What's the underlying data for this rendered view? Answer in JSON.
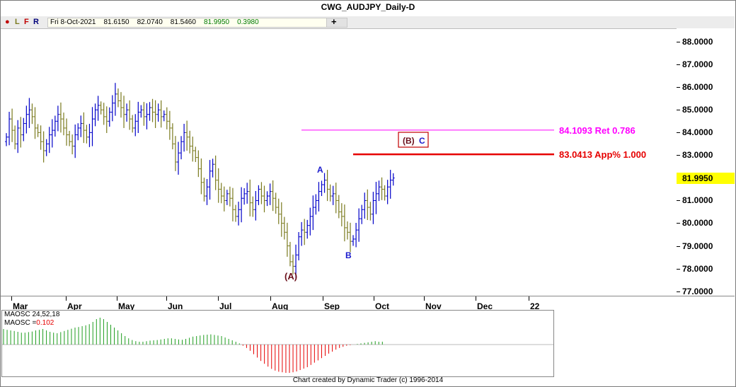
{
  "window": {
    "title": "CWG_AUDJPY_Daily-D"
  },
  "toolbar": {
    "buttons": [
      "L",
      "F",
      "R"
    ],
    "dot_color": "#c00000"
  },
  "quote": {
    "date": "Fri 8-Oct-2021",
    "open": "81.6150",
    "high": "82.0740",
    "low": "81.5460",
    "close": "81.9950",
    "change": "0.3980"
  },
  "chart_data": {
    "type": "ohlc",
    "symbol": "CWG_AUDJPY",
    "timeframe": "Daily",
    "price_ticks": [
      "88.0000",
      "87.0000",
      "86.0000",
      "85.0000",
      "84.0000",
      "83.0000",
      "81.0000",
      "80.0000",
      "79.0000",
      "78.0000",
      "77.0000"
    ],
    "ylim": [
      76.8,
      88.6
    ],
    "last_price": "81.9950",
    "last_price_bg": "#ffff00",
    "month_labels": [
      "Mar",
      "Apr",
      "May",
      "Jun",
      "Jul",
      "Aug",
      "Sep",
      "Oct",
      "Nov",
      "Dec",
      "22"
    ],
    "up_color": "#0000c8",
    "down_color": "#7a7a1e",
    "closes": [
      83.8,
      84.6,
      84.1,
      83.5,
      84.2,
      83.9,
      84.4,
      84.8,
      85.0,
      84.7,
      84.2,
      84.0,
      83.6,
      83.2,
      83.5,
      83.9,
      84.1,
      84.5,
      84.8,
      84.6,
      84.2,
      83.9,
      83.6,
      83.4,
      83.9,
      84.2,
      84.4,
      84.1,
      83.8,
      84.0,
      84.6,
      85.0,
      85.2,
      85.0,
      84.7,
      84.5,
      84.9,
      85.3,
      85.7,
      85.4,
      85.1,
      84.8,
      85.0,
      84.6,
      84.2,
      84.5,
      84.9,
      85.0,
      84.7,
      84.8,
      85.1,
      84.9,
      84.8,
      85.0,
      84.7,
      84.8,
      84.5,
      84.2,
      83.5,
      82.7,
      83.1,
      83.6,
      84.0,
      83.8,
      83.4,
      83.2,
      82.9,
      82.4,
      81.8,
      81.2,
      81.6,
      82.3,
      82.6,
      81.9,
      81.5,
      81.2,
      81.0,
      81.3,
      81.1,
      80.6,
      80.3,
      80.6,
      81.1,
      81.3,
      81.4,
      80.9,
      80.6,
      81.0,
      81.5,
      81.2,
      81.0,
      81.2,
      81.4,
      81.1,
      80.7,
      80.4,
      80.0,
      79.6,
      79.0,
      78.3,
      78.1,
      78.6,
      79.4,
      79.7,
      79.6,
      79.9,
      80.3,
      80.7,
      81.0,
      81.4,
      81.7,
      81.9,
      81.5,
      81.2,
      81.3,
      81.0,
      80.5,
      80.3,
      79.8,
      79.6,
      79.2,
      79.3,
      79.7,
      80.2,
      80.6,
      81.0,
      80.7,
      80.4,
      81.0,
      81.3,
      81.6,
      81.5,
      81.2,
      81.6,
      81.9,
      81.995
    ],
    "annotations": {
      "wave_A_paren": "(A)",
      "wave_A": "A",
      "wave_B": "B",
      "wave_B_paren": "(B)",
      "wave_C": "C",
      "ret_label": "84.1093 Ret 0.786",
      "ret_price": 84.1093,
      "ret_color": "#ff00ff",
      "app_label": "83.0413 App% 1.000",
      "app_price": 83.0413,
      "app_color": "#e60000"
    },
    "indicator": {
      "name": "MAOSC 24,52,18",
      "value_label": "MAOSC =",
      "value": "0.102",
      "value_color": "#e60000",
      "pos_color": "#1f9e1f",
      "neg_color": "#e60000",
      "values": [
        0.55,
        0.52,
        0.5,
        0.48,
        0.45,
        0.42,
        0.42,
        0.44,
        0.46,
        0.5,
        0.52,
        0.55,
        0.5,
        0.45,
        0.42,
        0.4,
        0.44,
        0.48,
        0.52,
        0.56,
        0.6,
        0.62,
        0.65,
        0.68,
        0.72,
        0.8,
        0.9,
        0.95,
        0.9,
        0.8,
        0.7,
        0.6,
        0.5,
        0.4,
        0.3,
        0.22,
        0.16,
        0.12,
        0.1,
        0.1,
        0.12,
        0.14,
        0.15,
        0.16,
        0.18,
        0.2,
        0.22,
        0.22,
        0.2,
        0.18,
        0.17,
        0.2,
        0.24,
        0.28,
        0.3,
        0.32,
        0.34,
        0.35,
        0.36,
        0.34,
        0.32,
        0.3,
        0.25,
        0.2,
        0.15,
        0.1,
        0.04,
        -0.04,
        -0.12,
        -0.22,
        -0.34,
        -0.46,
        -0.58,
        -0.68,
        -0.78,
        -0.86,
        -0.92,
        -0.96,
        -0.98,
        -1.0,
        -1.0,
        -0.98,
        -0.95,
        -0.9,
        -0.85,
        -0.8,
        -0.72,
        -0.64,
        -0.56,
        -0.48,
        -0.4,
        -0.32,
        -0.25,
        -0.18,
        -0.12,
        -0.08,
        -0.04,
        -0.02,
        0.0,
        0.02,
        0.04,
        0.06,
        0.08,
        0.1,
        0.12,
        0.1,
        0.102
      ]
    }
  },
  "footer": {
    "credit": "Chart created by Dynamic Trader  (c) 1996-2014"
  }
}
